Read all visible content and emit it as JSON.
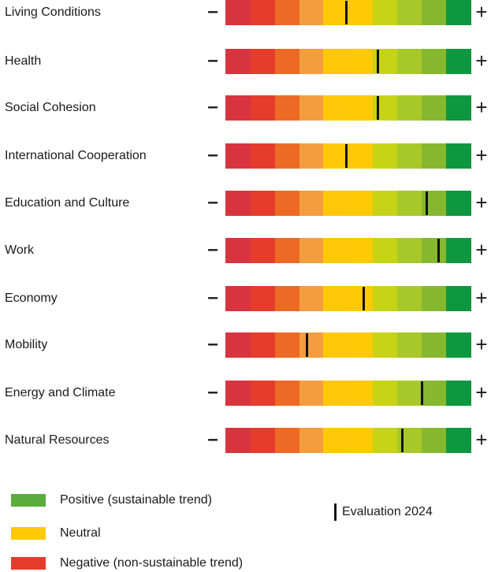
{
  "chart_data": {
    "type": "bar",
    "scale_min": 0,
    "scale_max": 10,
    "segment_colors": [
      "#d7343f",
      "#e63c2b",
      "#ed6a25",
      "#f39d3e",
      "#fec809",
      "#ffc905",
      "#c6d317",
      "#a8c82a",
      "#86b82f",
      "#0e973f"
    ],
    "segment_bounds": [
      0,
      1,
      2,
      3,
      4,
      5,
      6,
      7,
      8,
      9,
      10
    ],
    "minus_label": "–",
    "plus_label": "+",
    "categories": [
      "Living Conditions",
      "Health",
      "Social Cohesion",
      "International Cooperation",
      "Education and Culture",
      "Work",
      "Economy",
      "Mobility",
      "Energy and Climate",
      "Natural Resources"
    ],
    "series": [
      {
        "name": "Evaluation 2024",
        "values": [
          4.9,
          6.2,
          6.2,
          4.9,
          8.2,
          8.7,
          5.6,
          3.3,
          8.0,
          7.2
        ]
      }
    ],
    "legend": [
      {
        "label": "Positive (sustainable trend)",
        "color": "#5aac3c"
      },
      {
        "label": "Neutral",
        "color": "#ffc905"
      },
      {
        "label": "Negative (non-sustainable trend)",
        "color": "#e63c2b"
      }
    ],
    "marker_legend_label": "Evaluation 2024"
  }
}
